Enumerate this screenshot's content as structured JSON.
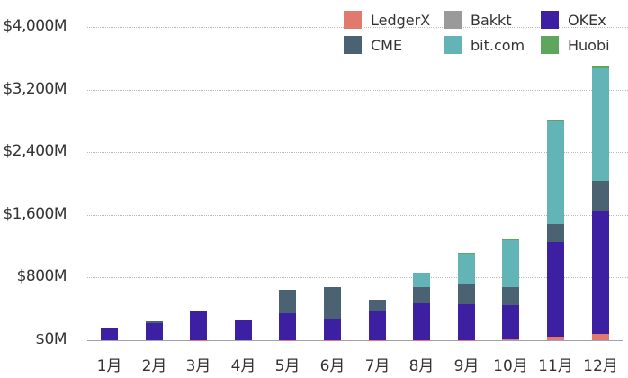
{
  "chart_data": {
    "type": "bar",
    "stacked": true,
    "title": "",
    "xlabel": "",
    "ylabel": "",
    "ylim": [
      0,
      4000
    ],
    "yticks": [
      "$0M",
      "$800M",
      "$1,600M",
      "$2,400M",
      "$3,200M",
      "$4,000M"
    ],
    "ytick_values": [
      0,
      800,
      1600,
      2400,
      3200,
      4000
    ],
    "grid": true,
    "legend_position": "top-right",
    "categories": [
      "1月",
      "2月",
      "3月",
      "4月",
      "5月",
      "6月",
      "7月",
      "8月",
      "9月",
      "10月",
      "11月",
      "12月"
    ],
    "series": [
      {
        "name": "LedgerX",
        "color": "#df7a6d",
        "values": [
          0,
          0,
          5,
          0,
          5,
          5,
          5,
          5,
          5,
          10,
          45,
          80
        ]
      },
      {
        "name": "OKEx",
        "color": "#3d1fa2",
        "values": [
          160,
          220,
          370,
          255,
          345,
          275,
          370,
          470,
          450,
          435,
          1210,
          1575
        ]
      },
      {
        "name": "CME",
        "color": "#4b6272",
        "values": [
          0,
          25,
          0,
          5,
          290,
          400,
          140,
          205,
          265,
          230,
          230,
          380
        ]
      },
      {
        "name": "Bakkt",
        "color": "#9a9a9a",
        "values": [
          0,
          0,
          0,
          0,
          0,
          0,
          0,
          0,
          0,
          0,
          0,
          0
        ]
      },
      {
        "name": "bit.com",
        "color": "#62b4b6",
        "values": [
          0,
          0,
          0,
          0,
          0,
          0,
          0,
          185,
          390,
          600,
          1310,
          1440
        ]
      },
      {
        "name": "Huobi",
        "color": "#5ea65e",
        "values": [
          0,
          0,
          0,
          0,
          0,
          0,
          0,
          0,
          10,
          15,
          25,
          35
        ]
      }
    ]
  },
  "legend": [
    {
      "label": "LedgerX",
      "color": "#df7a6d"
    },
    {
      "label": "Bakkt",
      "color": "#9a9a9a"
    },
    {
      "label": "OKEx",
      "color": "#3d1fa2"
    },
    {
      "label": "CME",
      "color": "#4b6272"
    },
    {
      "label": "bit.com",
      "color": "#62b4b6"
    },
    {
      "label": "Huobi",
      "color": "#5ea65e"
    }
  ]
}
